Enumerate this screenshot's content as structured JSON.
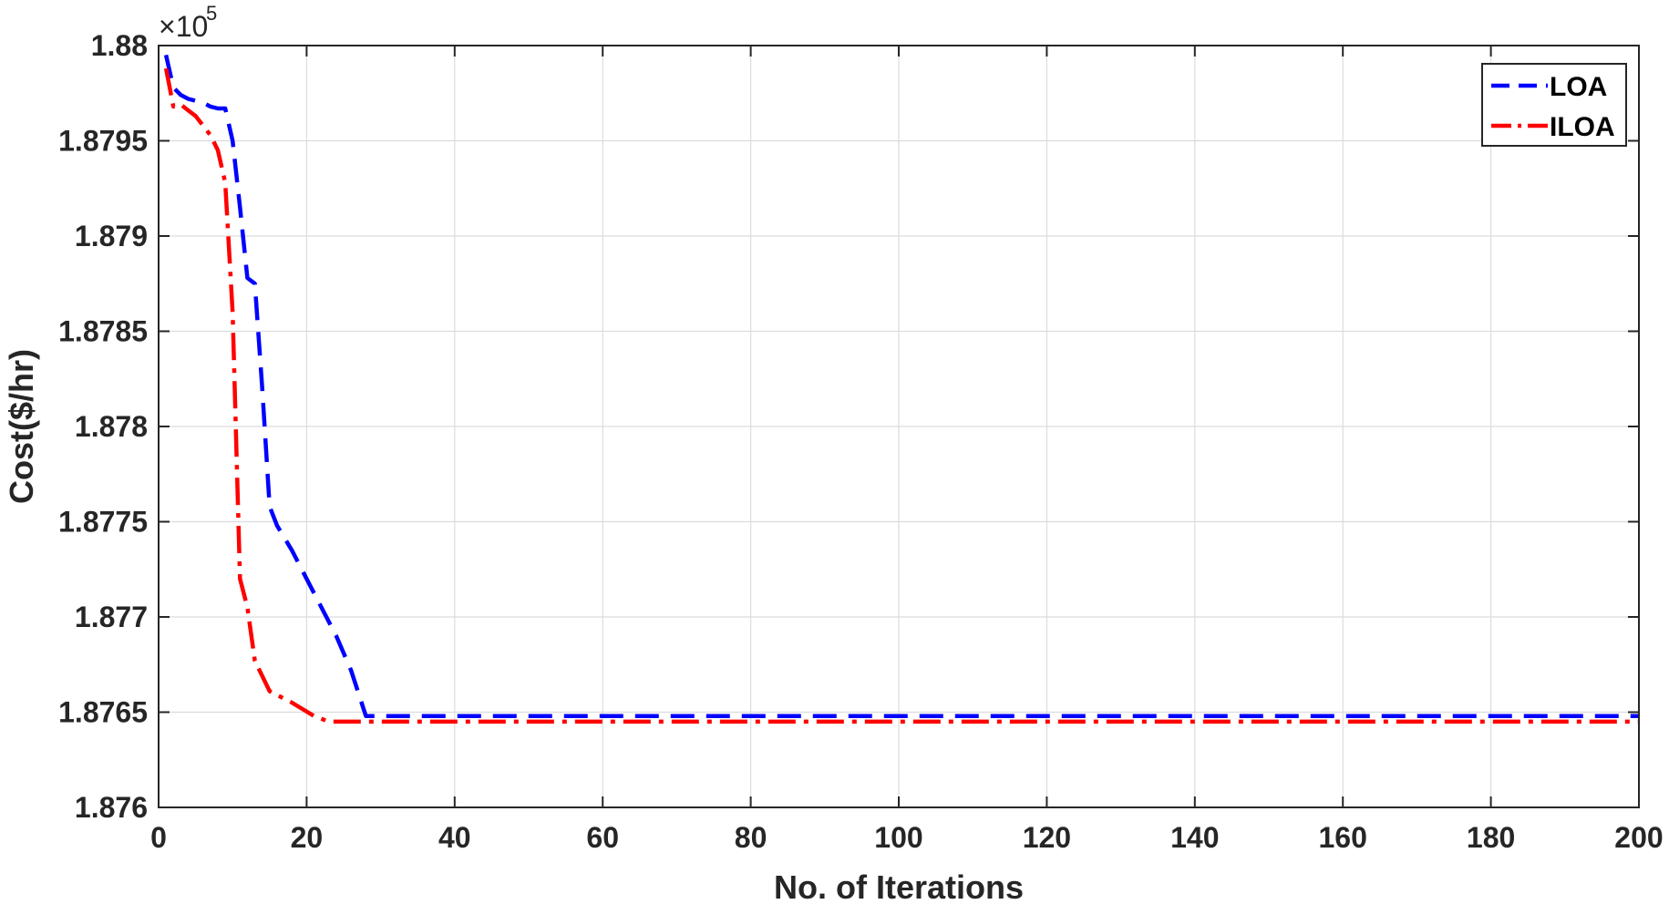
{
  "chart_data": {
    "type": "line",
    "title": "",
    "xlabel": "No. of Iterations",
    "ylabel": "Cost($/hr)",
    "y_exponent_base": "×10",
    "y_exponent_power": "5",
    "xlim": [
      0,
      200
    ],
    "ylim": [
      1.876,
      1.88
    ],
    "x_ticks": [
      0,
      20,
      40,
      60,
      80,
      100,
      120,
      140,
      160,
      180,
      200
    ],
    "x_tick_labels": [
      "0",
      "20",
      "40",
      "60",
      "80",
      "100",
      "120",
      "140",
      "160",
      "180",
      "200"
    ],
    "y_ticks": [
      1.876,
      1.8765,
      1.877,
      1.8775,
      1.878,
      1.8785,
      1.879,
      1.8795,
      1.88
    ],
    "y_tick_labels": [
      "1.876",
      "1.8765",
      "1.877",
      "1.8775",
      "1.878",
      "1.8785",
      "1.879",
      "1.8795",
      "1.88"
    ],
    "grid": true,
    "legend_position": "top-right",
    "series": [
      {
        "name": "LOA",
        "color": "#0000ff",
        "line_style": "dashed",
        "points": [
          [
            1,
            1.87995
          ],
          [
            2,
            1.87978
          ],
          [
            3,
            1.87974
          ],
          [
            4,
            1.87972
          ],
          [
            5,
            1.87971
          ],
          [
            6,
            1.8797
          ],
          [
            7,
            1.87968
          ],
          [
            8,
            1.87967
          ],
          [
            9,
            1.87967
          ],
          [
            10,
            1.8795
          ],
          [
            11,
            1.87915
          ],
          [
            12,
            1.87878
          ],
          [
            13,
            1.87875
          ],
          [
            14,
            1.8782
          ],
          [
            15,
            1.87758
          ],
          [
            16,
            1.87748
          ],
          [
            18,
            1.87735
          ],
          [
            20,
            1.8772
          ],
          [
            22,
            1.87705
          ],
          [
            24,
            1.8769
          ],
          [
            26,
            1.87672
          ],
          [
            28,
            1.87648
          ],
          [
            30,
            1.87648
          ],
          [
            200,
            1.87648
          ]
        ]
      },
      {
        "name": "ILOA",
        "color": "#ff0000",
        "line_style": "dashdot",
        "points": [
          [
            1,
            1.87988
          ],
          [
            2,
            1.87968
          ],
          [
            3,
            1.87969
          ],
          [
            4,
            1.87966
          ],
          [
            5,
            1.87963
          ],
          [
            6,
            1.87958
          ],
          [
            7,
            1.87953
          ],
          [
            8,
            1.87945
          ],
          [
            9,
            1.87928
          ],
          [
            10,
            1.8786
          ],
          [
            11,
            1.8772
          ],
          [
            12,
            1.87705
          ],
          [
            13,
            1.87677
          ],
          [
            15,
            1.87661
          ],
          [
            18,
            1.87655
          ],
          [
            21,
            1.87648
          ],
          [
            23,
            1.87645
          ],
          [
            25,
            1.87645
          ],
          [
            200,
            1.87645
          ]
        ]
      }
    ]
  }
}
